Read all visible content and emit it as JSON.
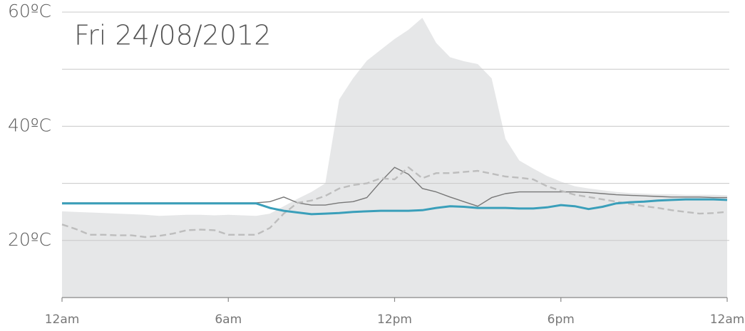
{
  "chart_data": {
    "type": "line",
    "title": "Fri 24/08/2012",
    "x": [
      0,
      0.5,
      1,
      1.5,
      2,
      2.5,
      3,
      3.5,
      4,
      4.5,
      5,
      5.5,
      6,
      6.5,
      7,
      7.5,
      8,
      8.5,
      9,
      9.5,
      10,
      10.5,
      11,
      11.5,
      12,
      12.5,
      13,
      13.5,
      14,
      14.5,
      15,
      15.5,
      16,
      16.5,
      17,
      17.5,
      18,
      18.5,
      19,
      19.5,
      20,
      20.5,
      21,
      21.5,
      22,
      22.5,
      23,
      23.5,
      24
    ],
    "xlim": [
      0,
      24
    ],
    "xticks": [
      {
        "value": 0,
        "label": "12am"
      },
      {
        "value": 6,
        "label": "6am"
      },
      {
        "value": 12,
        "label": "12pm"
      },
      {
        "value": 18,
        "label": "6pm"
      },
      {
        "value": 24,
        "label": "12am"
      }
    ],
    "ylim": [
      10,
      60
    ],
    "yticks": [
      {
        "value": 20,
        "label": "20ºC"
      },
      {
        "value": 40,
        "label": "40ºC"
      },
      {
        "value": 60,
        "label": "60ºC"
      }
    ],
    "yminor": [
      30,
      50
    ],
    "grid": true,
    "series": [
      {
        "style": "area",
        "color": "#e6e7e8",
        "values": [
          25.1,
          25,
          24.9,
          24.8,
          24.7,
          24.6,
          24.5,
          24.3,
          24.4,
          24.5,
          24.5,
          24.4,
          24.5,
          24.4,
          24.3,
          24.7,
          26,
          27.3,
          28.5,
          30,
          44.7,
          48.4,
          51.5,
          53.4,
          55.3,
          56.9,
          59,
          54.6,
          52.1,
          51.4,
          50.9,
          48.4,
          37.8,
          34,
          32.6,
          31.3,
          30.3,
          29.5,
          29.1,
          28.8,
          28.5,
          28.3,
          28.2,
          28.1,
          28.1,
          28,
          28,
          28,
          27.9
        ]
      },
      {
        "style": "thin",
        "color": "#777777",
        "values": [
          26.6,
          26.6,
          26.6,
          26.6,
          26.6,
          26.6,
          26.6,
          26.6,
          26.6,
          26.6,
          26.6,
          26.6,
          26.6,
          26.6,
          26.6,
          26.8,
          27.6,
          26.6,
          26.2,
          26.2,
          26.6,
          26.8,
          27.5,
          30.3,
          32.8,
          31.6,
          29.1,
          28.5,
          27.6,
          26.8,
          26,
          27.5,
          28.2,
          28.5,
          28.5,
          28.5,
          28.5,
          28.5,
          28.4,
          28.2,
          28,
          27.9,
          27.8,
          27.7,
          27.6,
          27.6,
          27.6,
          27.5,
          27.5
        ]
      },
      {
        "style": "dashed",
        "color": "#bdbdbd",
        "values": [
          22.8,
          22,
          21,
          21,
          20.9,
          20.9,
          20.6,
          20.8,
          21.2,
          21.8,
          21.9,
          21.8,
          21,
          21,
          21,
          22.2,
          24.7,
          26.6,
          27,
          27.8,
          29.1,
          29.7,
          30,
          30.9,
          30.7,
          32.8,
          30.9,
          31.8,
          31.8,
          32,
          32.2,
          31.7,
          31.2,
          31,
          30.7,
          29.5,
          28.7,
          28,
          27.6,
          27.2,
          26.8,
          26.4,
          26,
          25.7,
          25.3,
          25,
          24.7,
          24.8,
          25
        ]
      },
      {
        "style": "thick",
        "color": "#3a9fba",
        "values": [
          26.5,
          26.5,
          26.5,
          26.5,
          26.5,
          26.5,
          26.5,
          26.5,
          26.5,
          26.5,
          26.5,
          26.5,
          26.5,
          26.5,
          26.5,
          25.7,
          25.2,
          24.9,
          24.6,
          24.7,
          24.8,
          25,
          25.1,
          25.2,
          25.2,
          25.2,
          25.3,
          25.7,
          26,
          25.9,
          25.7,
          25.7,
          25.7,
          25.6,
          25.6,
          25.8,
          26.2,
          26,
          25.5,
          25.9,
          26.5,
          26.7,
          26.8,
          27,
          27.1,
          27.2,
          27.2,
          27.2,
          27.1
        ]
      }
    ]
  }
}
